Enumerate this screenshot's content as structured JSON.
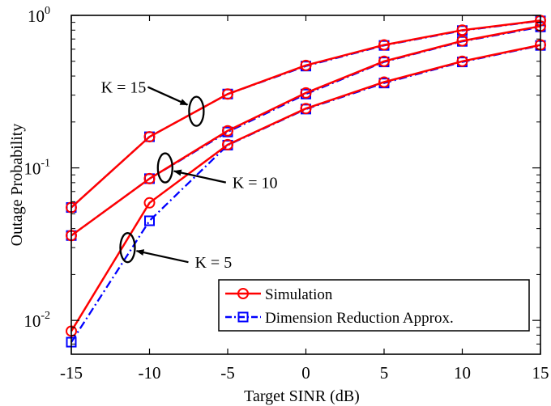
{
  "chart_data": {
    "type": "line",
    "xlabel": "Target SINR (dB)",
    "ylabel": "Outage Probability",
    "xlim": [
      -15,
      15
    ],
    "ylim": [
      0.006,
      1
    ],
    "yscale": "log",
    "grid": false,
    "legend_position": "bottom-right",
    "x": [
      -15,
      -10,
      -5,
      0,
      5,
      10,
      15
    ],
    "x_tick_labels": [
      "-15",
      "-10",
      "-5",
      "0",
      "5",
      "10",
      "15"
    ],
    "y_ticks": [
      {
        "value": 0.01,
        "base": "10",
        "exp": "-2"
      },
      {
        "value": 0.1,
        "base": "10",
        "exp": "-1"
      },
      {
        "value": 1,
        "base": "10",
        "exp": "0"
      }
    ],
    "series": [
      {
        "name": "Simulation",
        "style": "solid-circle",
        "color": "#ff0000",
        "group": "K15",
        "values": [
          0.055,
          0.16,
          0.305,
          0.47,
          0.64,
          0.8,
          0.925
        ]
      },
      {
        "name": "Dimension Reduction Approx.",
        "style": "dashdot-square",
        "color": "#0000ff",
        "group": "K15",
        "values": [
          0.055,
          0.16,
          0.305,
          0.465,
          0.635,
          0.795,
          0.92
        ]
      },
      {
        "name": "Simulation",
        "style": "solid-circle",
        "color": "#ff0000",
        "group": "K10",
        "values": [
          0.036,
          0.085,
          0.175,
          0.31,
          0.5,
          0.68,
          0.85
        ]
      },
      {
        "name": "Dimension Reduction Approx.",
        "style": "dashdot-square",
        "color": "#0000ff",
        "group": "K10",
        "values": [
          0.036,
          0.085,
          0.172,
          0.305,
          0.495,
          0.675,
          0.84
        ]
      },
      {
        "name": "Simulation",
        "style": "solid-circle",
        "color": "#ff0000",
        "group": "K5",
        "values": [
          0.0085,
          0.059,
          0.142,
          0.245,
          0.365,
          0.5,
          0.64
        ]
      },
      {
        "name": "Dimension Reduction Approx.",
        "style": "dashdot-square",
        "color": "#0000ff",
        "group": "K5",
        "values": [
          0.0072,
          0.045,
          0.141,
          0.243,
          0.36,
          0.495,
          0.635
        ]
      }
    ],
    "legend": [
      {
        "label": "Simulation",
        "style": "solid-circle",
        "color": "#ff0000"
      },
      {
        "label": "Dimension Reduction Approx.",
        "style": "dashdot-square",
        "color": "#0000ff"
      }
    ],
    "annotations": [
      {
        "text": "K = 15",
        "ellipse_at": {
          "x": -7,
          "y": 0.235
        },
        "label_side": "left"
      },
      {
        "text": "K = 10",
        "ellipse_at": {
          "x": -9,
          "y": 0.1
        },
        "label_side": "right"
      },
      {
        "text": "K = 5",
        "ellipse_at": {
          "x": -11.4,
          "y": 0.03
        },
        "label_side": "right"
      }
    ]
  }
}
